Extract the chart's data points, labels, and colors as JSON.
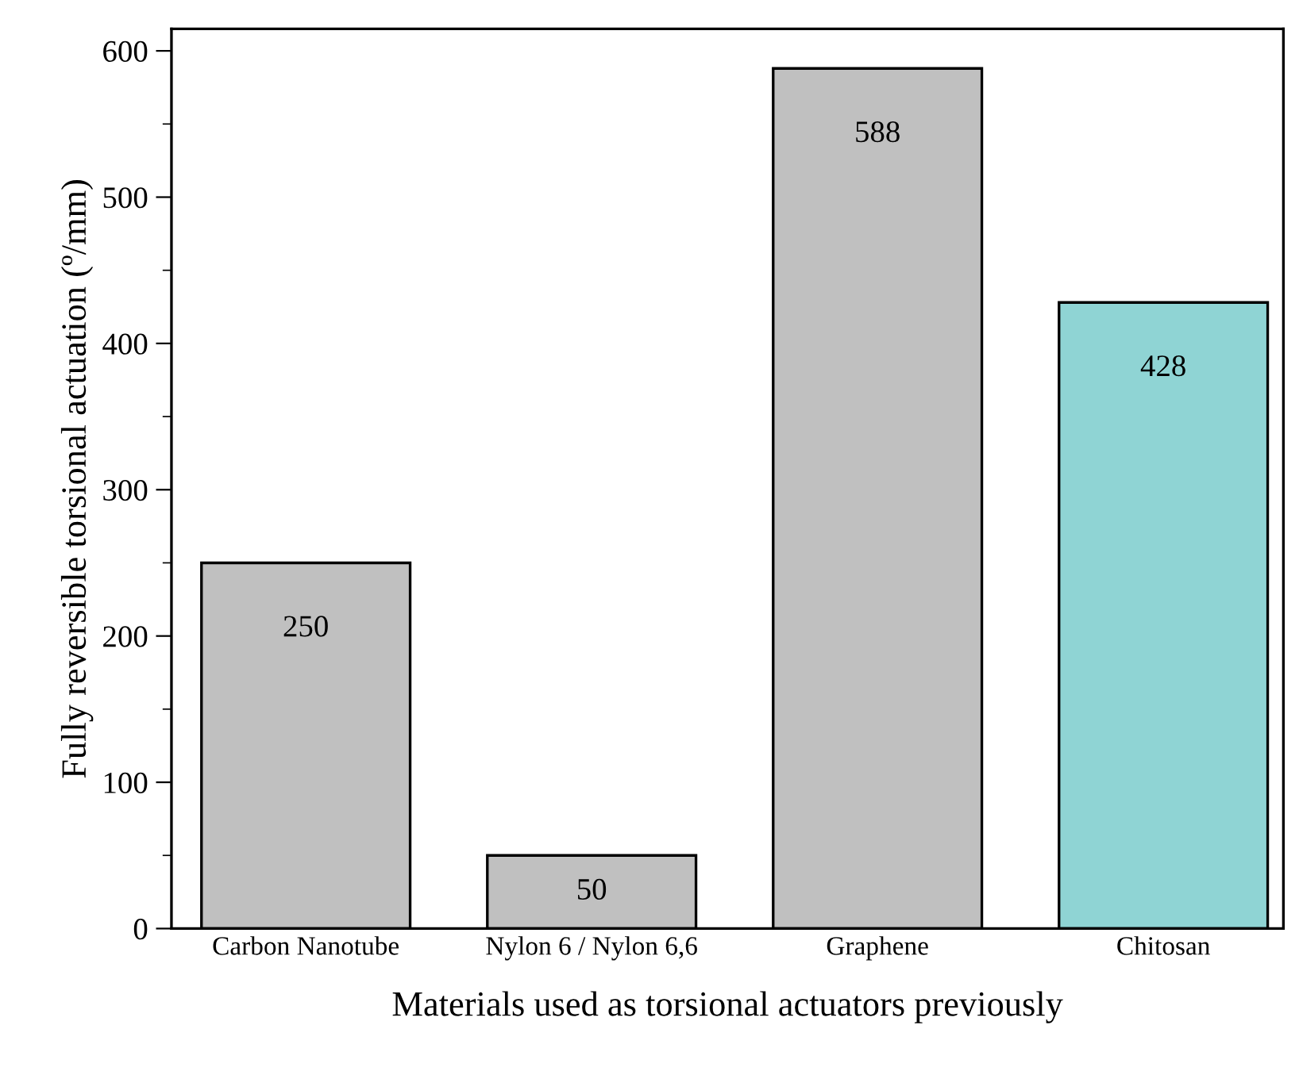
{
  "chart_data": {
    "type": "bar",
    "xlabel": "Materials used as torsional actuators previously",
    "ylabel": "Fully reversible torsional actuation (º/mm)",
    "categories": [
      "Carbon Nanotube",
      "Nylon 6 / Nylon 6,6",
      "Graphene",
      "Chitosan"
    ],
    "values": [
      250,
      50,
      588,
      428
    ],
    "colors": [
      "#c0c0c0",
      "#c0c0c0",
      "#c0c0c0",
      "#8fd4d4"
    ],
    "ylim": [
      0,
      615
    ],
    "yticks": [
      0,
      100,
      200,
      300,
      400,
      500,
      600
    ],
    "grid": false,
    "data_labels": true
  }
}
